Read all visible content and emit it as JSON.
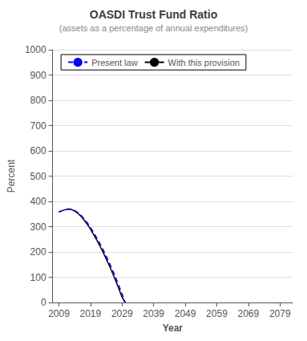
{
  "chart_data": {
    "type": "line",
    "title": "OASDI Trust Fund Ratio",
    "subtitle": "(assets as a percentage of annual expenditures)",
    "xlabel": "Year",
    "ylabel": "Percent",
    "x": [
      2009,
      2010,
      2011,
      2012,
      2013,
      2014,
      2015,
      2016,
      2017,
      2018,
      2019,
      2020,
      2021,
      2022,
      2023,
      2024,
      2025,
      2026,
      2027,
      2028,
      2029,
      2030
    ],
    "series": [
      {
        "name": "Present law",
        "color": "#0000FF",
        "line_style": "dashed",
        "values": [
          358,
          363,
          367,
          370,
          369,
          364,
          356,
          345,
          331,
          315,
          297,
          277,
          255,
          233,
          209,
          183,
          156,
          128,
          98,
          67,
          34,
          0
        ]
      },
      {
        "name": "With this provision",
        "color": "#000000",
        "line_style": "solid",
        "values": [
          358,
          363,
          367,
          370,
          368,
          362,
          353,
          341,
          326,
          309,
          290,
          269,
          247,
          223,
          199,
          172,
          145,
          116,
          86,
          54,
          21,
          0
        ]
      }
    ],
    "xlim": [
      2007,
      2083
    ],
    "xticks": [
      2009,
      2019,
      2029,
      2039,
      2049,
      2059,
      2069,
      2079
    ],
    "ylim": [
      0,
      1000
    ],
    "yticks": [
      0,
      100,
      200,
      300,
      400,
      500,
      600,
      700,
      800,
      900,
      1000
    ],
    "grid": true,
    "legend": "upper center"
  }
}
